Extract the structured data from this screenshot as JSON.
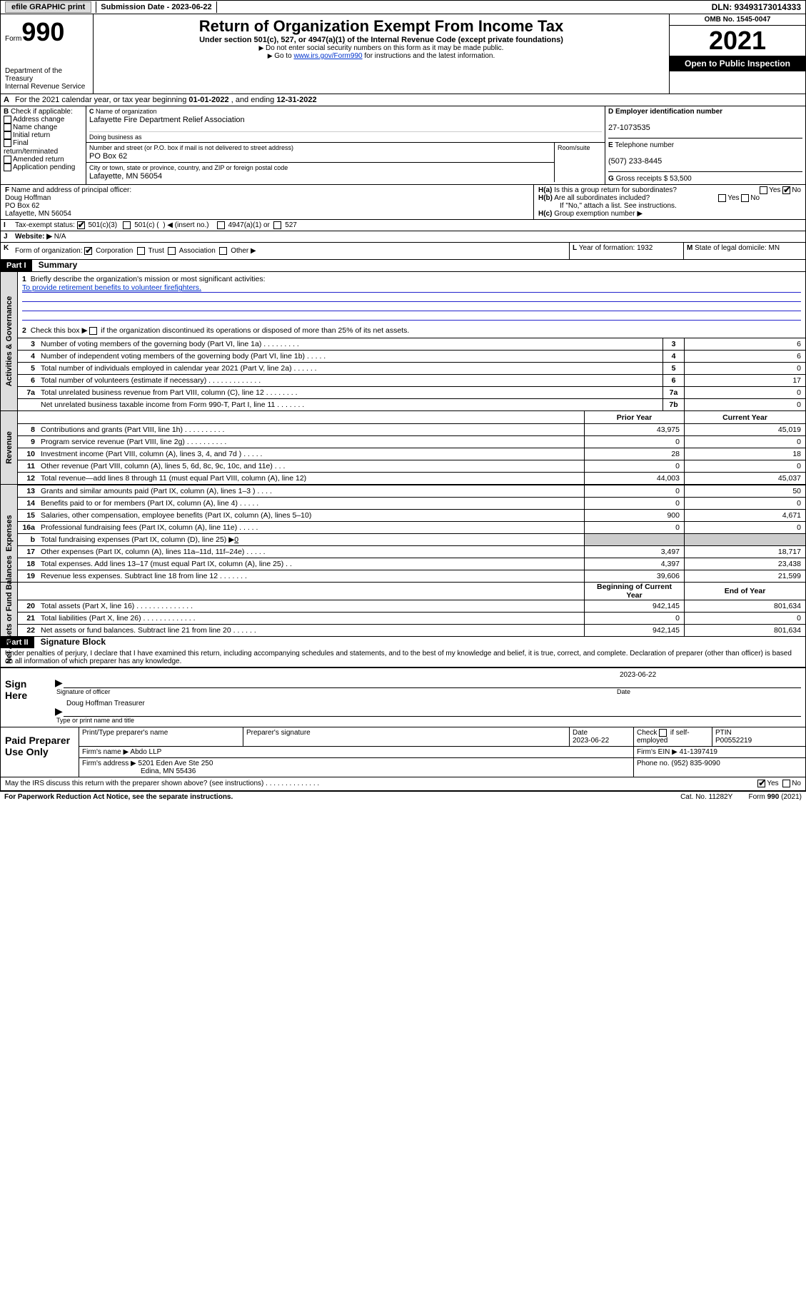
{
  "topbar": {
    "efile_label": "efile GRAPHIC print",
    "submission_label": "Submission Date - 2023-06-22",
    "dln_label": "DLN: 93493173014333"
  },
  "header": {
    "form_label": "Form",
    "form_number": "990",
    "dept": "Department of the Treasury",
    "irs": "Internal Revenue Service",
    "title": "Return of Organization Exempt From Income Tax",
    "subtitle": "Under section 501(c), 527, or 4947(a)(1) of the Internal Revenue Code (except private foundations)",
    "note1": "Do not enter social security numbers on this form as it may be made public.",
    "note2_pre": "Go to ",
    "note2_link": "www.irs.gov/Form990",
    "note2_post": " for instructions and the latest information.",
    "omb": "OMB No. 1545-0047",
    "year": "2021",
    "open": "Open to Public Inspection"
  },
  "periodA": {
    "text_pre": "For the 2021 calendar year, or tax year beginning ",
    "begin": "01-01-2022",
    "mid": " , and ending ",
    "end": "12-31-2022"
  },
  "boxB": {
    "label": "Check if applicable:",
    "items": [
      "Address change",
      "Name change",
      "Initial return",
      "Final return/terminated",
      "Amended return",
      "Application pending"
    ]
  },
  "boxC": {
    "name_label": "Name of organization",
    "name": "Lafayette Fire Department Relief Association",
    "dba_label": "Doing business as",
    "street_label": "Number and street (or P.O. box if mail is not delivered to street address)",
    "room_label": "Room/suite",
    "street": "PO Box 62",
    "city_label": "City or town, state or province, country, and ZIP or foreign postal code",
    "city": "Lafayette, MN  56054"
  },
  "boxD": {
    "ein_label": "Employer identification number",
    "ein": "27-1073535",
    "phone_label": "Telephone number",
    "phone": "(507) 233-8445",
    "gross_label": "Gross receipts $",
    "gross": "53,500"
  },
  "boxF": {
    "label": "Name and address of principal officer:",
    "name": "Doug Hoffman",
    "addr1": "PO Box 62",
    "addr2": "Lafayette, MN  56054"
  },
  "boxH": {
    "ha_label": "Is this a group return for subordinates?",
    "hb_label": "Are all subordinates included?",
    "hb_note": "If \"No,\" attach a list. See instructions.",
    "hc_label": "Group exemption number ▶",
    "yes": "Yes",
    "no": "No"
  },
  "boxI": {
    "label": "Tax-exempt status:",
    "opt1": "501(c)(3)",
    "opt2_pre": "501(c) (",
    "opt2_post": ") ◀ (insert no.)",
    "opt3": "4947(a)(1) or",
    "opt4": "527"
  },
  "boxJ": {
    "label": "Website: ▶",
    "value": "N/A"
  },
  "boxK": {
    "label": "Form of organization:",
    "opts": [
      "Corporation",
      "Trust",
      "Association",
      "Other ▶"
    ]
  },
  "boxL": {
    "label": "Year of formation:",
    "value": "1932"
  },
  "boxM": {
    "label": "State of legal domicile:",
    "value": "MN"
  },
  "part1": {
    "header": "Part I",
    "title": "Summary",
    "q1_label": "Briefly describe the organization's mission or most significant activities:",
    "q1_value": "To provide retirement benefits to volunteer firefighters.",
    "q2_label": "Check this box ▶",
    "q2_post": " if the organization discontinued its operations or disposed of more than 25% of its net assets.",
    "sidebar_activities": "Activities & Governance",
    "sidebar_revenue": "Revenue",
    "sidebar_expenses": "Expenses",
    "sidebar_net": "Net Assets or Fund Balances",
    "col_prior": "Prior Year",
    "col_current": "Current Year",
    "col_boy": "Beginning of Current Year",
    "col_eoy": "End of Year",
    "lines_gov": [
      {
        "n": "3",
        "d": "Number of voting members of the governing body (Part VI, line 1a)   .    .    .    .    .    .    .    .    .",
        "box": "3",
        "v": "6"
      },
      {
        "n": "4",
        "d": "Number of independent voting members of the governing body (Part VI, line 1b)   .    .    .    .    .",
        "box": "4",
        "v": "6"
      },
      {
        "n": "5",
        "d": "Total number of individuals employed in calendar year 2021 (Part V, line 2a)   .    .    .    .    .    .",
        "box": "5",
        "v": "0"
      },
      {
        "n": "6",
        "d": "Total number of volunteers (estimate if necessary)   .    .    .    .    .    .    .    .    .    .    .    .    .",
        "box": "6",
        "v": "17"
      },
      {
        "n": "7a",
        "d": "Total unrelated business revenue from Part VIII, column (C), line 12   .    .    .    .    .    .    .    .",
        "box": "7a",
        "v": "0"
      },
      {
        "n": "",
        "d": "Net unrelated business taxable income from Form 990-T, Part I, line 11   .    .    .    .    .    .    .",
        "box": "7b",
        "v": "0"
      }
    ],
    "lines_rev": [
      {
        "n": "8",
        "d": "Contributions and grants (Part VIII, line 1h)   .    .    .    .    .    .    .    .    .    .",
        "p": "43,975",
        "c": "45,019"
      },
      {
        "n": "9",
        "d": "Program service revenue (Part VIII, line 2g)   .    .    .    .    .    .    .    .    .    .",
        "p": "0",
        "c": "0"
      },
      {
        "n": "10",
        "d": "Investment income (Part VIII, column (A), lines 3, 4, and 7d )   .    .    .    .    .",
        "p": "28",
        "c": "18"
      },
      {
        "n": "11",
        "d": "Other revenue (Part VIII, column (A), lines 5, 6d, 8c, 9c, 10c, and 11e)   .    .    .",
        "p": "0",
        "c": "0"
      },
      {
        "n": "12",
        "d": "Total revenue—add lines 8 through 11 (must equal Part VIII, column (A), line 12)",
        "p": "44,003",
        "c": "45,037"
      }
    ],
    "lines_exp": [
      {
        "n": "13",
        "d": "Grants and similar amounts paid (Part IX, column (A), lines 1–3 )   .    .    .    .",
        "p": "0",
        "c": "50"
      },
      {
        "n": "14",
        "d": "Benefits paid to or for members (Part IX, column (A), line 4)   .    .    .    .    .",
        "p": "0",
        "c": "0"
      },
      {
        "n": "15",
        "d": "Salaries, other compensation, employee benefits (Part IX, column (A), lines 5–10)",
        "p": "900",
        "c": "4,671"
      },
      {
        "n": "16a",
        "d": "Professional fundraising fees (Part IX, column (A), line 11e)   .    .    .    .    .",
        "p": "0",
        "c": "0"
      }
    ],
    "line16b_pre": "Total fundraising expenses (Part IX, column (D), line 25) ▶",
    "line16b_val": "0",
    "lines_exp2": [
      {
        "n": "17",
        "d": "Other expenses (Part IX, column (A), lines 11a–11d, 11f–24e)   .    .    .    .    .",
        "p": "3,497",
        "c": "18,717"
      },
      {
        "n": "18",
        "d": "Total expenses. Add lines 13–17 (must equal Part IX, column (A), line 25)   .    .",
        "p": "4,397",
        "c": "23,438"
      },
      {
        "n": "19",
        "d": "Revenue less expenses. Subtract line 18 from line 12   .    .    .    .    .    .    .",
        "p": "39,606",
        "c": "21,599"
      }
    ],
    "lines_net": [
      {
        "n": "20",
        "d": "Total assets (Part X, line 16)   .    .    .    .    .    .    .    .    .    .    .    .    .    .",
        "p": "942,145",
        "c": "801,634"
      },
      {
        "n": "21",
        "d": "Total liabilities (Part X, line 26)   .    .    .    .    .    .    .    .    .    .    .    .    .",
        "p": "0",
        "c": "0"
      },
      {
        "n": "22",
        "d": "Net assets or fund balances. Subtract line 21 from line 20   .    .    .    .    .    .",
        "p": "942,145",
        "c": "801,634"
      }
    ]
  },
  "part2": {
    "header": "Part II",
    "title": "Signature Block",
    "declaration": "Under penalties of perjury, I declare that I have examined this return, including accompanying schedules and statements, and to the best of my knowledge and belief, it is true, correct, and complete. Declaration of preparer (other than officer) is based on all information of which preparer has any knowledge.",
    "sign_here": "Sign Here",
    "sig_officer": "Signature of officer",
    "date_label": "Date",
    "sig_date": "2023-06-22",
    "officer_name": "Doug Hoffman  Treasurer",
    "type_name": "Type or print name and title",
    "paid": "Paid Preparer Use Only",
    "print_name_label": "Print/Type preparer's name",
    "prep_sig_label": "Preparer's signature",
    "prep_date": "2023-06-22",
    "check_if": "Check",
    "self_emp": "if self-employed",
    "ptin_label": "PTIN",
    "ptin": "P00552219",
    "firm_name_label": "Firm's name    ▶",
    "firm_name": "Abdo LLP",
    "firm_ein_label": "Firm's EIN ▶",
    "firm_ein": "41-1397419",
    "firm_addr_label": "Firm's address ▶",
    "firm_addr1": "5201 Eden Ave Ste 250",
    "firm_addr2": "Edina, MN  55436",
    "phone_label": "Phone no.",
    "phone": "(952) 835-9090",
    "may_irs": "May the IRS discuss this return with the preparer shown above? (see instructions)   .    .    .    .    .    .    .    .    .    .    .    .    .    .",
    "yes": "Yes",
    "no": "No"
  },
  "footer": {
    "paperwork": "For Paperwork Reduction Act Notice, see the separate instructions.",
    "cat": "Cat. No. 11282Y",
    "form": "Form 990 (2021)"
  },
  "letters": {
    "A": "A",
    "B": "B",
    "C": "C",
    "D": "D",
    "E": "E",
    "F": "F",
    "G": "G",
    "H_a": "H(a)",
    "H_b": "H(b)",
    "H_c": "H(c)",
    "I": "I",
    "J": "J",
    "K": "K",
    "L": "L",
    "M": "M",
    "b": "b"
  }
}
